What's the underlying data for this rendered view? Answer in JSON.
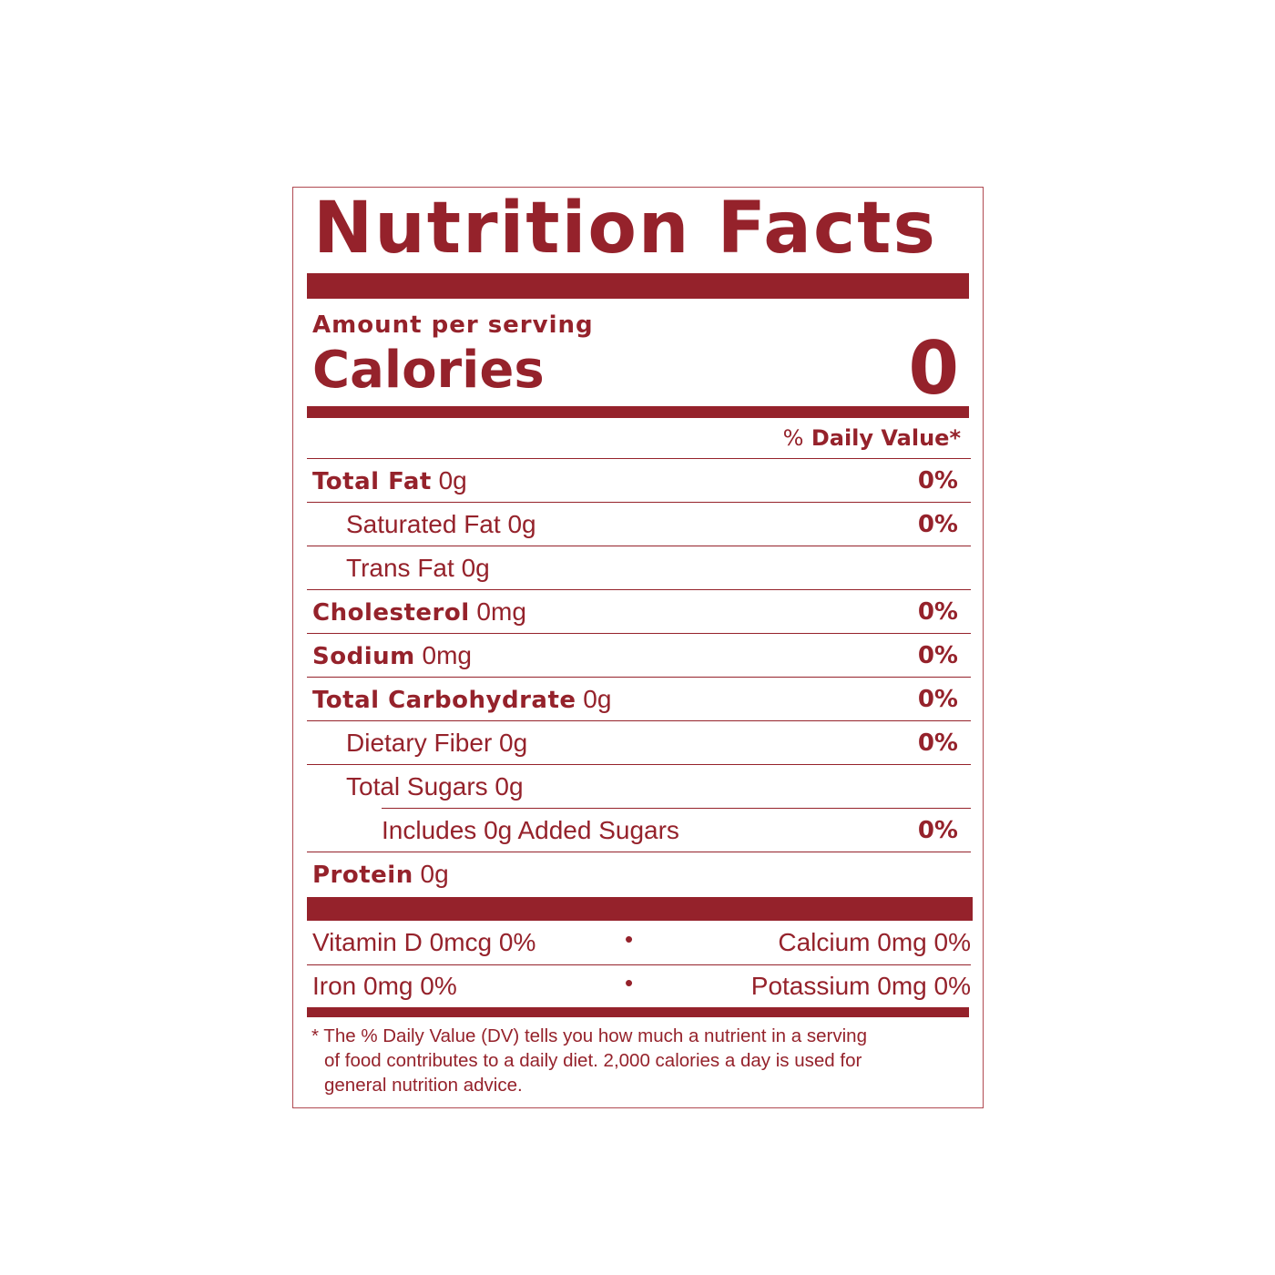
{
  "title": "Nutrition Facts",
  "amount_per_serving": "Amount per serving",
  "calories": {
    "label": "Calories",
    "value": "0"
  },
  "daily_value_header": {
    "pct": "%",
    "label": "Daily Value*"
  },
  "nutrients": [
    {
      "label": "Total Fat",
      "amount": "0g",
      "dv": "0%",
      "bold": true,
      "indent": 0
    },
    {
      "label": "Saturated Fat",
      "amount": "0g",
      "dv": "0%",
      "bold": false,
      "indent": 1
    },
    {
      "label": "Trans Fat",
      "amount": "0g",
      "dv": "",
      "bold": false,
      "indent": 1
    },
    {
      "label": "Cholesterol",
      "amount": "0mg",
      "dv": "0%",
      "bold": true,
      "indent": 0
    },
    {
      "label": "Sodium",
      "amount": "0mg",
      "dv": "0%",
      "bold": true,
      "indent": 0
    },
    {
      "label": "Total Carbohydrate",
      "amount": "0g",
      "dv": "0%",
      "bold": true,
      "indent": 0
    },
    {
      "label": "Dietary Fiber",
      "amount": "0g",
      "dv": "0%",
      "bold": false,
      "indent": 1
    },
    {
      "label": "Total Sugars",
      "amount": "0g",
      "dv": "",
      "bold": false,
      "indent": 1
    },
    {
      "label": "Includes 0g Added Sugars",
      "amount": "",
      "dv": "0%",
      "bold": false,
      "indent": 2
    },
    {
      "label": "Protein",
      "amount": "0g",
      "dv": "",
      "bold": true,
      "indent": 0
    }
  ],
  "minerals": [
    {
      "left": "Vitamin D 0mcg 0%",
      "separator": "•",
      "right": "Calcium 0mg 0%"
    },
    {
      "left": "Iron 0mg 0%",
      "separator": "•",
      "right": "Potassium 0mg 0%"
    }
  ],
  "footnote": {
    "line1": "* The % Daily Value (DV) tells you how much a nutrient in a serving",
    "line2": "of food contributes to a daily diet. 2,000 calories a day is used for",
    "line3": "general nutrition advice."
  },
  "colors": {
    "label_red": "#95222b",
    "background": "#ffffff"
  }
}
